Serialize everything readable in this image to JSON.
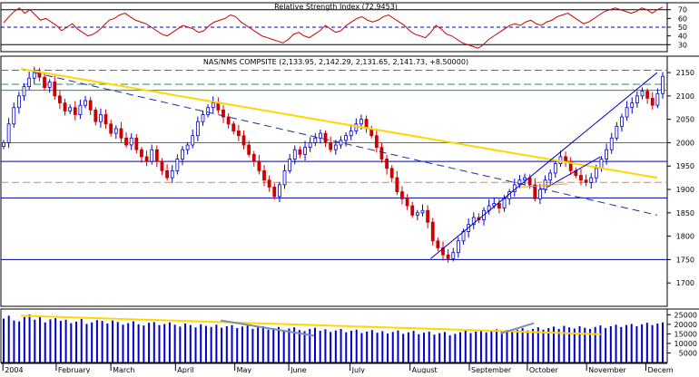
{
  "chart_data": [
    {
      "type": "line",
      "panel": "rsi",
      "title": "Relative Strength Index (72.9453)",
      "ylim": [
        22,
        78
      ],
      "yticks": [
        30,
        40,
        50,
        60,
        70
      ],
      "reference_lines": [
        70,
        50,
        30
      ],
      "grid": true,
      "series": [
        {
          "color": "#cc0000",
          "values": [
            55,
            62,
            68,
            72,
            66,
            70,
            64,
            58,
            60,
            56,
            52,
            46,
            50,
            54,
            48,
            44,
            40,
            42,
            46,
            52,
            58,
            60,
            64,
            66,
            62,
            58,
            56,
            54,
            50,
            46,
            42,
            40,
            44,
            48,
            52,
            50,
            48,
            44,
            46,
            52,
            56,
            58,
            60,
            64,
            62,
            56,
            52,
            48,
            44,
            40,
            38,
            36,
            34,
            32,
            36,
            42,
            44,
            40,
            38,
            42,
            46,
            52,
            48,
            44,
            46,
            52,
            56,
            60,
            62,
            58,
            56,
            58,
            62,
            64,
            60,
            56,
            52,
            46,
            42,
            40,
            38,
            44,
            52,
            48,
            42,
            40,
            36,
            32,
            30,
            28,
            26,
            30,
            36,
            40,
            44,
            48,
            52,
            54,
            52,
            56,
            58,
            54,
            52,
            56,
            58,
            62,
            64,
            66,
            62,
            58,
            54,
            56,
            60,
            64,
            68,
            70,
            72,
            70,
            68,
            66,
            68,
            72,
            70,
            66,
            70,
            73
          ]
        }
      ]
    },
    {
      "type": "candlestick",
      "panel": "price",
      "title": "NAS/NMS COMPSITE (2,133.95, 2,142.29, 2,131.65, 2,141.73, +8.50000)",
      "ylim": [
        1650,
        2185
      ],
      "yticks": [
        1700,
        1750,
        1800,
        1850,
        1900,
        1950,
        2000,
        2050,
        2100,
        2150
      ],
      "xlabels": [
        "2004",
        "February",
        "March",
        "April",
        "May",
        "June",
        "July",
        "August",
        "September",
        "October",
        "November",
        "Decem"
      ],
      "grid": true,
      "series": [
        {
          "name": "",
          "close": [
            2000,
            2040,
            2075,
            2100,
            2120,
            2138,
            2150,
            2140,
            2118,
            2130,
            2100,
            2085,
            2068,
            2075,
            2060,
            2080,
            2090,
            2070,
            2045,
            2060,
            2040,
            2020,
            2030,
            2010,
            1995,
            2010,
            1985,
            1970,
            1960,
            1985,
            1960,
            1940,
            1925,
            1940,
            1965,
            1985,
            1995,
            2015,
            2045,
            2060,
            2075,
            2085,
            2070,
            2055,
            2040,
            2025,
            2015,
            1995,
            1975,
            1960,
            1940,
            1920,
            1905,
            1885,
            1910,
            1940,
            1965,
            1985,
            1975,
            1990,
            2000,
            2010,
            2020,
            2000,
            1985,
            1995,
            2005,
            2015,
            2025,
            2040,
            2050,
            2030,
            2015,
            1990,
            1965,
            1945,
            1925,
            1895,
            1880,
            1865,
            1845,
            1850,
            1855,
            1830,
            1790,
            1775,
            1760,
            1752,
            1765,
            1790,
            1810,
            1825,
            1840,
            1835,
            1855,
            1865,
            1870,
            1860,
            1880,
            1895,
            1910,
            1920,
            1925,
            1910,
            1880,
            1900,
            1920,
            1935,
            1955,
            1970,
            1960,
            1940,
            1930,
            1920,
            1915,
            1925,
            1945,
            1965,
            1985,
            2010,
            2035,
            2055,
            2075,
            2085,
            2100,
            2110,
            2095,
            2080,
            2105,
            2142
          ]
        }
      ],
      "horizontal_lines": [
        {
          "value": 2155,
          "color": "#2e8b57",
          "style": "dashed"
        },
        {
          "value": 2125,
          "color": "#2e8b57",
          "style": "dashed"
        },
        {
          "value": 2112,
          "color": "#1a9a3a",
          "style": "solid"
        },
        {
          "value": 2000,
          "color": "#1a9a3a",
          "style": "solid"
        },
        {
          "value": 1960,
          "color": "#0000aa",
          "style": "solid"
        },
        {
          "value": 1915,
          "color": "#f08030",
          "style": "dashed"
        },
        {
          "value": 1882,
          "color": "#0000aa",
          "style": "solid"
        },
        {
          "value": 1750,
          "color": "#0000aa",
          "style": "solid"
        }
      ],
      "trend_lines": [
        {
          "from": [
            0.03,
            2158
          ],
          "to": [
            0.985,
            1925
          ],
          "color": "#ffd700",
          "style": "solid"
        },
        {
          "from": [
            0.05,
            2150
          ],
          "to": [
            0.985,
            1845
          ],
          "color": "#1a2f9a",
          "style": "dashed"
        },
        {
          "from": [
            0.645,
            1752
          ],
          "to": [
            0.985,
            2150
          ],
          "color": "#0000cc",
          "style": "solid"
        },
        {
          "from": [
            0.82,
            1905
          ],
          "to": [
            0.9,
            1970
          ],
          "color": "#0000cc",
          "style": "solid"
        },
        {
          "from": [
            0.78,
            1905
          ],
          "to": [
            0.85,
            1912
          ],
          "color": "#f0a000",
          "style": "solid"
        }
      ]
    },
    {
      "type": "bar",
      "panel": "volume",
      "ylim": [
        0,
        28000
      ],
      "yticks": [
        5000,
        10000,
        15000,
        20000,
        25000
      ],
      "series": [
        {
          "color": "#0000cc",
          "values": [
            23000,
            24500,
            22000,
            21500,
            23800,
            25200,
            22400,
            24000,
            21000,
            22600,
            23200,
            21800,
            22400,
            20600,
            21400,
            22800,
            20200,
            21000,
            22200,
            21800,
            20400,
            22000,
            21200,
            19800,
            20600,
            21600,
            20000,
            19400,
            20800,
            21200,
            19600,
            20200,
            21000,
            19800,
            18800,
            20400,
            19600,
            18400,
            20000,
            19200,
            18600,
            19800,
            18200,
            19000,
            19600,
            18000,
            18800,
            19400,
            17600,
            18400,
            19000,
            17200,
            18000,
            18600,
            16800,
            17800,
            18400,
            17000,
            16400,
            17600,
            18200,
            16600,
            17400,
            16000,
            16800,
            17600,
            15800,
            16600,
            17200,
            15400,
            16200,
            17000,
            15600,
            16400,
            15200,
            16000,
            16800,
            15000,
            15800,
            16600,
            14800,
            15600,
            16200,
            14600,
            15400,
            16000,
            14200,
            15000,
            15800,
            16600,
            15400,
            16200,
            17000,
            15800,
            16600,
            17400,
            16200,
            17000,
            16400,
            17200,
            18000,
            16800,
            17600,
            18400,
            17200,
            18000,
            18800,
            17600,
            19200,
            18400,
            17800,
            19000,
            18200,
            17600,
            18600,
            19400,
            18000,
            19000,
            19800,
            18600,
            19600,
            20200,
            19000,
            20000,
            20800,
            19600,
            20400,
            21000
          ]
        }
      ],
      "trend_lines": [
        {
          "from": [
            0.03,
            24500
          ],
          "to": [
            0.9,
            14800
          ],
          "color": "#ffd700"
        },
        {
          "from": [
            0.33,
            22000
          ],
          "to": [
            0.47,
            14000
          ],
          "color": "#7890a8"
        },
        {
          "from": [
            0.75,
            15200
          ],
          "to": [
            0.8,
            20600
          ],
          "color": "#7890a8"
        }
      ]
    }
  ]
}
